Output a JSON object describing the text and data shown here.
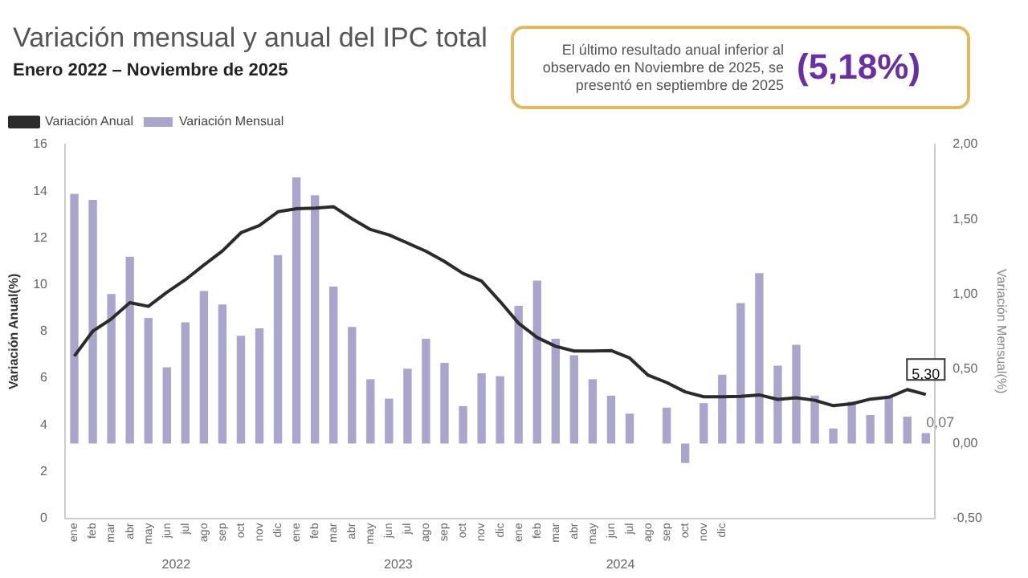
{
  "chart_data": {
    "type": "bar",
    "title": "Variación mensual y anual del IPC total",
    "subtitle": "Enero 2022 – Noviembre de 2025",
    "ylabel": "Variación Anual(%)",
    "y2label": "Variación Mensual(%)",
    "categories": [
      "ene",
      "feb",
      "mar",
      "abr",
      "may",
      "jun",
      "jul",
      "ago",
      "sep",
      "oct",
      "nov",
      "dic",
      "ene",
      "feb",
      "mar",
      "abr",
      "may",
      "jun",
      "jul",
      "ago",
      "sep",
      "oct",
      "nov",
      "dic",
      "ene",
      "feb",
      "mar",
      "abr",
      "may",
      "jun",
      "jul",
      "ago",
      "sep",
      "oct",
      "nov",
      "dic",
      null,
      null,
      null,
      null,
      null,
      null,
      null,
      null,
      null,
      null,
      null
    ],
    "series": [
      {
        "name": "Variación Mensual",
        "axis": "y2",
        "color": "#aaa5cc",
        "values": [
          1.67,
          1.63,
          1.0,
          1.25,
          0.84,
          0.51,
          0.81,
          1.02,
          0.93,
          0.72,
          0.77,
          1.26,
          1.78,
          1.66,
          1.05,
          0.78,
          0.43,
          0.3,
          0.5,
          0.7,
          0.54,
          0.25,
          0.47,
          0.45,
          0.92,
          1.09,
          0.7,
          0.59,
          0.43,
          0.32,
          0.2,
          0.0,
          0.24,
          -0.13,
          0.27,
          0.46,
          0.94,
          1.14,
          0.52,
          0.66,
          0.32,
          0.1,
          0.28,
          0.19,
          0.32,
          0.18,
          0.07
        ],
        "value_labels": [
          null,
          null,
          null,
          null,
          null,
          null,
          null,
          null,
          null,
          null,
          null,
          null,
          null,
          null,
          null,
          null,
          null,
          null,
          null,
          null,
          null,
          null,
          null,
          null,
          null,
          null,
          null,
          null,
          null,
          null,
          null,
          null,
          null,
          null,
          null,
          null,
          null,
          null,
          null,
          null,
          null,
          null,
          null,
          null,
          null,
          null,
          "0,07"
        ]
      },
      {
        "name": "Variación Anual",
        "type": "line",
        "color": "#2b2b2b",
        "values": [
          6.94,
          8.01,
          8.53,
          9.23,
          9.07,
          9.67,
          10.21,
          10.84,
          11.44,
          12.22,
          12.53,
          13.12,
          13.25,
          13.28,
          13.34,
          12.82,
          12.36,
          12.13,
          11.78,
          11.43,
          10.99,
          10.48,
          10.15,
          9.28,
          8.35,
          7.74,
          7.36,
          7.16,
          7.16,
          7.18,
          6.86,
          6.12,
          5.81,
          5.41,
          5.2,
          5.2,
          5.22,
          5.28,
          5.09,
          5.16,
          5.05,
          4.82,
          4.9,
          5.1,
          5.18,
          5.51,
          5.3
        ],
        "value_labels": [
          null,
          null,
          null,
          null,
          null,
          null,
          null,
          null,
          null,
          null,
          null,
          null,
          null,
          null,
          null,
          null,
          null,
          null,
          null,
          null,
          null,
          null,
          null,
          null,
          null,
          null,
          null,
          null,
          null,
          null,
          null,
          null,
          null,
          null,
          null,
          null,
          null,
          null,
          null,
          null,
          null,
          null,
          null,
          null,
          null,
          null,
          "5,30"
        ]
      }
    ],
    "ylim": [
      0,
      16
    ],
    "yticks": [
      0,
      2,
      4,
      6,
      8,
      10,
      12,
      14,
      16
    ],
    "y2lim": [
      -0.5,
      2.0
    ],
    "y2ticks": [
      {
        "value": -0.5,
        "label": "-0,50"
      },
      {
        "value": 0,
        "label": "0,00"
      },
      {
        "value": 0.5,
        "label": "0,50"
      },
      {
        "value": 1,
        "label": "1,00"
      },
      {
        "value": 1.5,
        "label": "1,50"
      },
      {
        "value": 2,
        "label": "2,00"
      }
    ],
    "legend": "top left",
    "grid": false,
    "marker": "none",
    "annotations": [
      "El último resultado anual inferior al observado en Noviembre de 2025, se presentó en septiembre de 2025",
      "(5,18%)",
      "2022",
      "2023",
      "2024"
    ]
  }
}
